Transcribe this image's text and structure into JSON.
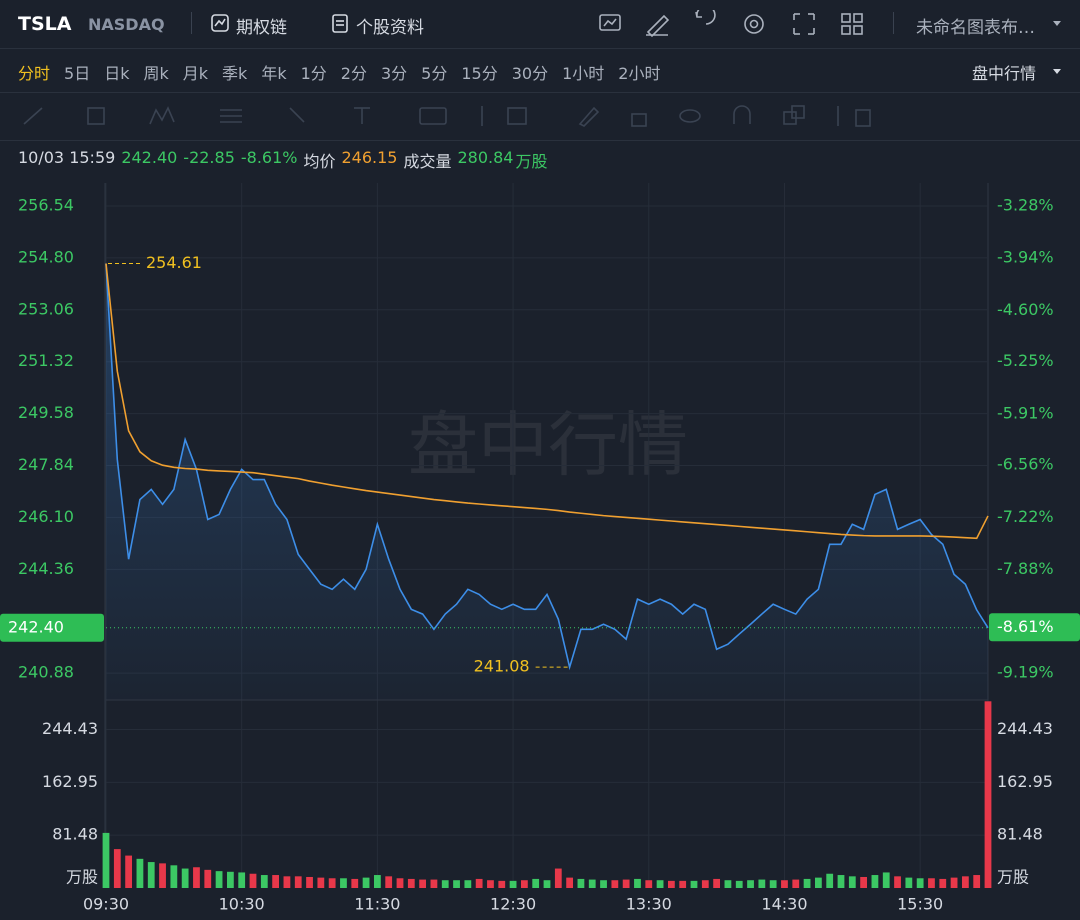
{
  "header": {
    "symbol": "TSLA",
    "exchange": "NASDAQ",
    "options": "期权链",
    "profile": "个股资料",
    "layout": "未命名图表布…"
  },
  "periods": [
    "分时",
    "5日",
    "日k",
    "周k",
    "月k",
    "季k",
    "年k",
    "1分",
    "2分",
    "3分",
    "5分",
    "15分",
    "30分",
    "1小时",
    "2小时"
  ],
  "session": "盘中行情",
  "quote": {
    "time": "10/03 15:59",
    "price": "242.40",
    "change": "-22.85",
    "change_pct": "-8.61%",
    "avg_label": "均价",
    "avg": "246.15",
    "volume_label": "成交量",
    "volume": "280.84",
    "volume_unit": "万股"
  },
  "chart_data": [
    {
      "type": "line",
      "watermark": "盘中行情",
      "series": [
        {
          "color": "#3d8ee8",
          "values": [
            254.61,
            248.04,
            244.7,
            246.7,
            247.04,
            246.54,
            247.04,
            248.71,
            247.71,
            246.03,
            246.2,
            247.04,
            247.71,
            247.37,
            247.37,
            246.54,
            246.03,
            244.86,
            244.36,
            243.86,
            243.69,
            244.03,
            243.69,
            244.36,
            245.87,
            244.7,
            243.69,
            243.02,
            242.86,
            242.35,
            242.86,
            243.19,
            243.69,
            243.52,
            243.19,
            243.02,
            243.19,
            243.02,
            243.02,
            243.52,
            242.69,
            241.08,
            242.35,
            242.35,
            242.52,
            242.35,
            242.02,
            243.36,
            243.19,
            243.36,
            243.19,
            242.86,
            243.19,
            243.02,
            241.68,
            241.85,
            242.19,
            242.52,
            242.86,
            243.19,
            243.02,
            242.86,
            243.36,
            243.69,
            245.2,
            245.2,
            245.87,
            245.7,
            246.87,
            247.04,
            245.7,
            245.87,
            246.03,
            245.53,
            245.2,
            244.19,
            243.86,
            243.0,
            242.4
          ]
        },
        {
          "color": "#f0a030",
          "values": [
            254.61,
            251.0,
            249.0,
            248.3,
            248.0,
            247.85,
            247.78,
            247.74,
            247.72,
            247.68,
            247.66,
            247.64,
            247.62,
            247.6,
            247.55,
            247.5,
            247.45,
            247.4,
            247.32,
            247.25,
            247.18,
            247.12,
            247.06,
            247.0,
            246.95,
            246.9,
            246.85,
            246.8,
            246.75,
            246.7,
            246.66,
            246.62,
            246.58,
            246.55,
            246.52,
            246.49,
            246.46,
            246.43,
            246.4,
            246.37,
            246.33,
            246.28,
            246.24,
            246.2,
            246.16,
            246.13,
            246.1,
            246.07,
            246.04,
            246.01,
            245.98,
            245.95,
            245.92,
            245.89,
            245.86,
            245.83,
            245.8,
            245.77,
            245.74,
            245.71,
            245.68,
            245.65,
            245.62,
            245.59,
            245.56,
            245.53,
            245.51,
            245.49,
            245.48,
            245.48,
            245.48,
            245.48,
            245.48,
            245.47,
            245.46,
            245.44,
            245.42,
            245.4,
            246.15
          ]
        }
      ],
      "ylim": [
        239.98,
        257.31
      ],
      "yticks": [
        256.54,
        {
          "value": 254.8,
          "label": "254.80"
        },
        253.06,
        251.32,
        249.58,
        247.84,
        {
          "value": 246.1,
          "label": "246.10"
        },
        244.36,
        240.88
      ],
      "y2lim": [
        -9.53,
        -2.99
      ],
      "y2ticks": [
        {
          "value": -3.28,
          "label": "-3.28%"
        },
        {
          "value": -3.94,
          "label": "-3.94%"
        },
        {
          "value": -4.6,
          "label": "-4.60%"
        },
        {
          "value": -5.25,
          "label": "-5.25%"
        },
        {
          "value": -5.91,
          "label": "-5.91%"
        },
        {
          "value": -6.56,
          "label": "-6.56%"
        },
        {
          "value": -7.22,
          "label": "-7.22%"
        },
        {
          "value": -7.88,
          "label": "-7.88%"
        },
        {
          "value": -9.19,
          "label": "-9.19%"
        }
      ],
      "last": {
        "value": 242.4,
        "label": "242.40"
      },
      "last_pct": {
        "value": -8.61,
        "label": "-8.61%"
      },
      "max": 254.61,
      "min": 241.08,
      "grid": true
    },
    {
      "type": "bar",
      "categories": [
        "09:30",
        null,
        null,
        null,
        null,
        null,
        null,
        null,
        null,
        null,
        null,
        null,
        "10:30",
        null,
        null,
        null,
        null,
        null,
        null,
        null,
        null,
        null,
        null,
        null,
        "11:30",
        null,
        null,
        null,
        null,
        null,
        null,
        null,
        null,
        null,
        null,
        null,
        "12:30",
        null,
        null,
        null,
        null,
        null,
        null,
        null,
        null,
        null,
        null,
        null,
        "13:30",
        null,
        null,
        null,
        null,
        null,
        null,
        null,
        null,
        null,
        null,
        null,
        "14:30",
        null,
        null,
        null,
        null,
        null,
        null,
        null,
        null,
        null,
        null,
        null,
        "15:30",
        null,
        null,
        null,
        null,
        null,
        null
      ],
      "values": [
        85,
        60,
        50,
        45,
        40,
        38,
        35,
        30,
        32,
        28,
        26,
        25,
        24,
        22,
        20,
        20,
        18,
        18,
        17,
        16,
        15,
        15,
        14,
        16,
        20,
        18,
        15,
        14,
        13,
        13,
        12,
        12,
        12,
        14,
        12,
        11,
        11,
        12,
        14,
        12,
        30,
        16,
        14,
        13,
        12,
        12,
        13,
        14,
        12,
        12,
        11,
        11,
        11,
        12,
        14,
        12,
        11,
        12,
        13,
        12,
        12,
        13,
        14,
        16,
        22,
        20,
        18,
        17,
        20,
        24,
        18,
        16,
        15,
        15,
        14,
        16,
        18,
        20,
        288
      ],
      "ylim": [
        0,
        290
      ],
      "yticks": [
        81.48,
        162.95,
        244.43
      ],
      "y_unit": "万股",
      "up_color": "#3cc864",
      "down_color": "#e8384a"
    }
  ]
}
